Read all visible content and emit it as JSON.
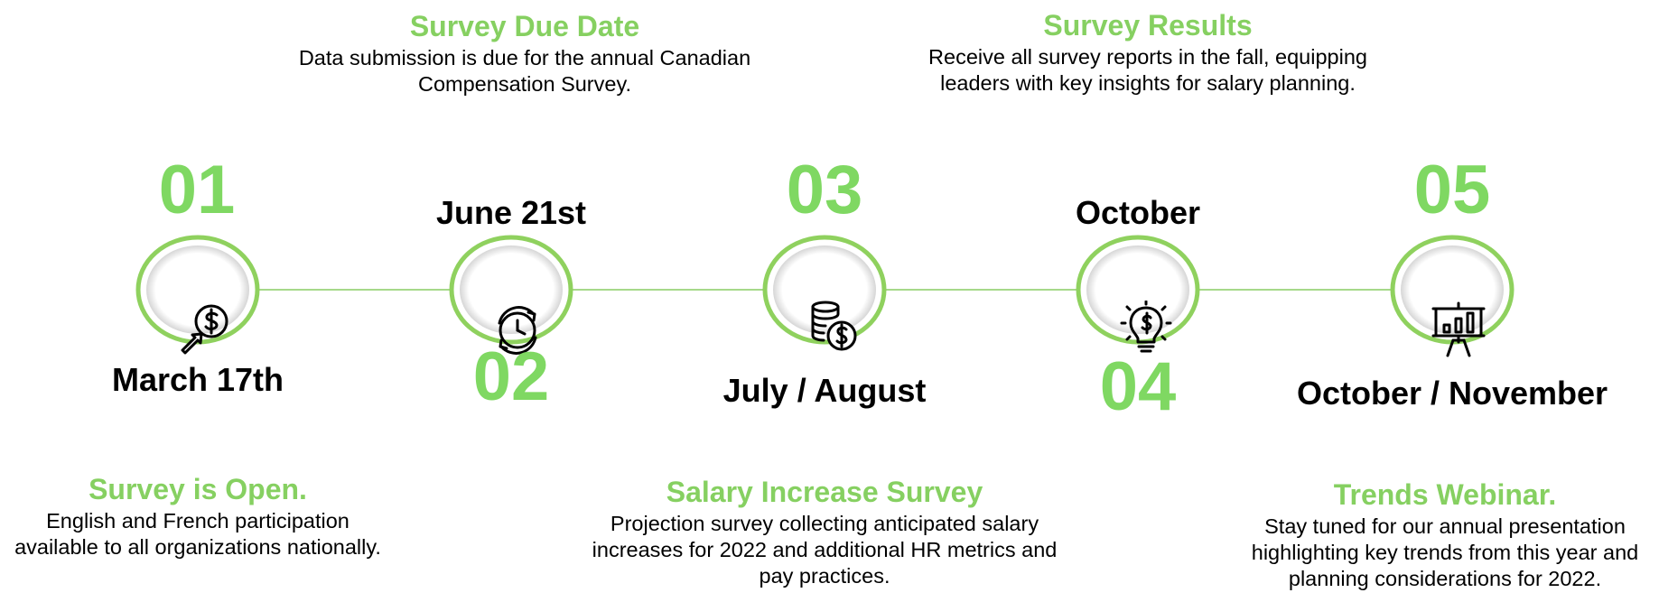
{
  "colors": {
    "accent": "#7fd862",
    "title_green": "#86d061",
    "ring": "#8fd15e",
    "text": "#000000"
  },
  "steps": [
    {
      "number": "01",
      "date": "March 17th",
      "icon": "dollar-click-icon",
      "title": "Survey is Open.",
      "text": "English and French participation available to all organizations nationally."
    },
    {
      "number": "02",
      "date": "June 21st",
      "icon": "clock-refresh-icon",
      "title": "Survey Due Date",
      "text": "Data submission is due for the annual Canadian Compensation Survey."
    },
    {
      "number": "03",
      "date": "July / August",
      "icon": "coins-dollar-icon",
      "title": "Salary Increase Survey",
      "text": "Projection survey collecting anticipated salary increases for 2022 and additional HR metrics and pay practices."
    },
    {
      "number": "04",
      "date": "October",
      "icon": "lightbulb-dollar-icon",
      "title": "Survey Results",
      "text": "Receive all survey reports in the fall, equipping leaders with key insights for salary planning."
    },
    {
      "number": "05",
      "date": "October / November",
      "icon": "presentation-board-icon",
      "title": "Trends Webinar.",
      "text": "Stay tuned for our annual presentation highlighting key trends from this year and planning considerations for 2022."
    }
  ]
}
